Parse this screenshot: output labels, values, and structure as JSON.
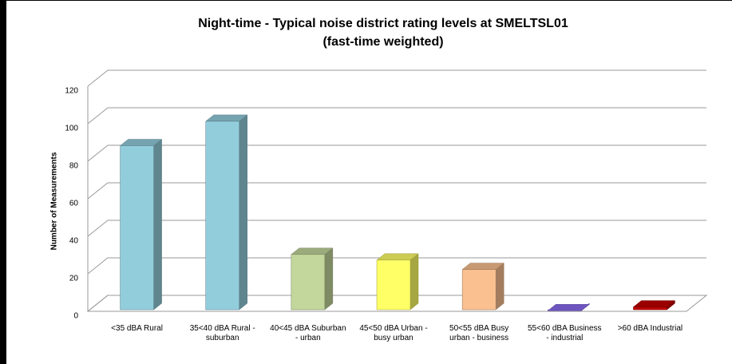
{
  "chart_data": {
    "type": "bar",
    "title": "Night-time - Typical noise district rating levels at SMELTSL01",
    "subtitle": "(fast-time weighted)",
    "y_label": "Number of Measurements",
    "categories": [
      "<35 dBA Rural",
      "35<40 dBA Rural - suburban",
      "40<45 dBA Suburban - urban",
      "45<50 dBA Urban - busy urban",
      "50<55 dBA Busy urban - business",
      "55<60 dBA Business - industrial",
      ">60 dBA Industrial"
    ],
    "values": [
      90,
      103,
      32,
      29,
      24,
      2,
      4
    ],
    "colors": [
      "#92cddc",
      "#92cddc",
      "#c3d69b",
      "#ffff66",
      "#fac090",
      "#8a6cf0",
      "#c00000"
    ],
    "ylim": [
      0,
      120
    ],
    "yticks": [
      0,
      20,
      40,
      60,
      80,
      100,
      120
    ],
    "grid": true
  }
}
